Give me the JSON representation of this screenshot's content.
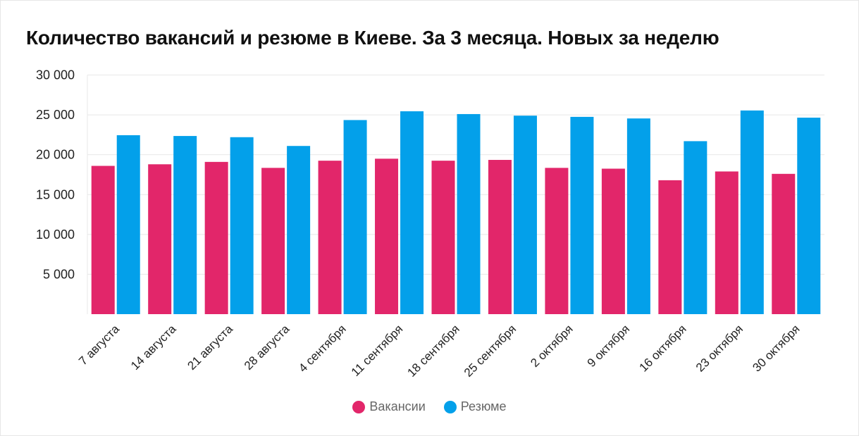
{
  "chart_data": {
    "type": "bar",
    "title": "Количество вакансий и резюме в Киеве. За 3 месяца. Новых за неделю",
    "xlabel": "",
    "ylabel": "",
    "ylim": [
      0,
      30000
    ],
    "yticks": [
      5000,
      10000,
      15000,
      20000,
      25000,
      30000
    ],
    "ytick_labels": [
      "5 000",
      "10 000",
      "15 000",
      "20 000",
      "25 000",
      "30 000"
    ],
    "grid": true,
    "legend": "bottom",
    "categories": [
      "7 августа",
      "14 августа",
      "21 августа",
      "28 августа",
      "4 сентября",
      "11 сентября",
      "18 сентября",
      "25 сентября",
      "2 октября",
      "9 октября",
      "16 октября",
      "23 октября",
      "30 октября"
    ],
    "series": [
      {
        "name": "Вакансии",
        "color": "#e2266a",
        "values": [
          18600,
          18800,
          19100,
          18350,
          19250,
          19500,
          19250,
          19350,
          18350,
          18250,
          16800,
          17900,
          17600
        ]
      },
      {
        "name": "Резюме",
        "color": "#03a0ea",
        "values": [
          22450,
          22350,
          22200,
          21100,
          24350,
          25450,
          25100,
          24900,
          24750,
          24550,
          21700,
          25550,
          24650
        ]
      }
    ]
  }
}
